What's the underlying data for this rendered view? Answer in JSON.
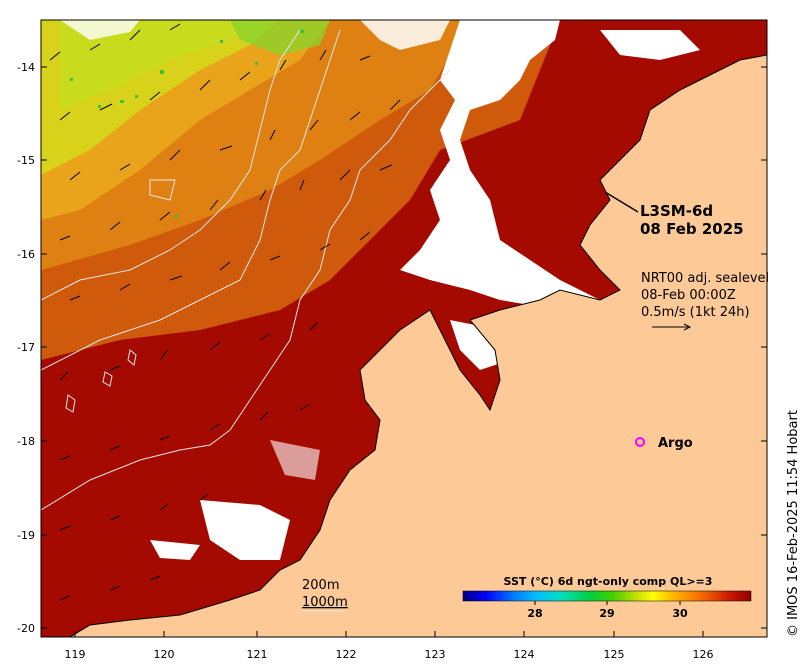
{
  "map": {
    "title_line1": "L3SM-6d",
    "title_line2": "08 Feb 2025",
    "vector_note_1": "NRT00 adj. sealevel",
    "vector_note_2": "08-Feb 00:00Z",
    "vector_note_3": "0.5m/s (1kt 24h)",
    "argo_label": "Argo",
    "contour_label_1": "200m",
    "contour_label_2": "1000m",
    "credit": "© IMOS 16-Feb-2025 11:54 Hobart",
    "colors": {
      "land": "#fdc996",
      "sst_hot": "#a40a00",
      "sst_mid": "#d9650d",
      "sst_warm": "#e99a18",
      "sst_cool": "#d6d81a",
      "argo_marker": "#ff00ff"
    }
  },
  "axes": {
    "x_ticks": [
      "119",
      "120",
      "121",
      "122",
      "123",
      "124",
      "125",
      "126"
    ],
    "y_ticks": [
      "-14",
      "-15",
      "-16",
      "-17",
      "-18",
      "-19",
      "-20"
    ]
  },
  "colorbar": {
    "title": "SST (°C) 6d ngt-only comp QL>=3",
    "ticks": [
      "28",
      "29",
      "30"
    ],
    "colors": [
      "#00007f",
      "#0000ff",
      "#0080ff",
      "#00c0ff",
      "#00e0c0",
      "#00d040",
      "#40d000",
      "#c0e000",
      "#ffff00",
      "#ffc000",
      "#ff8000",
      "#e04000",
      "#c01000",
      "#900000"
    ]
  }
}
